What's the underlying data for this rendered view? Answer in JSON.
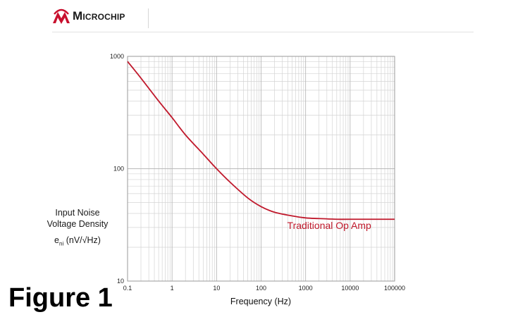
{
  "brand": {
    "name": "Microchip",
    "color": "#c8102e"
  },
  "figure_label": "Figure 1",
  "chart_data": {
    "type": "line",
    "title": "",
    "xlabel": "Frequency (Hz)",
    "ylabel_lines": [
      "Input Noise",
      "Voltage Density"
    ],
    "ylabel_symbol": "e",
    "ylabel_subscript": "ni",
    "ylabel_unit": "(nV/√Hz)",
    "x_scale": "log",
    "y_scale": "log",
    "xlim": [
      0.1,
      100000
    ],
    "ylim": [
      10,
      1000
    ],
    "x_ticks": [
      "0.1",
      "1",
      "10",
      "100",
      "1000",
      "10000",
      "100000"
    ],
    "y_ticks": [
      "10",
      "100",
      "1000"
    ],
    "grid": true,
    "series": [
      {
        "name": "Traditional Op Amp",
        "color": "#c0192c",
        "x": [
          0.1,
          0.2,
          0.5,
          1,
          2,
          5,
          10,
          20,
          50,
          100,
          200,
          500,
          1000,
          2000,
          5000,
          10000,
          100000
        ],
        "y": [
          900,
          640,
          400,
          285,
          200,
          135,
          100,
          76,
          55,
          46,
          41,
          38,
          36.5,
          36,
          35.5,
          35.5,
          35.5
        ]
      }
    ],
    "annotations": [
      {
        "text": "Traditional Op Amp",
        "x": 800,
        "y": 30
      }
    ]
  }
}
